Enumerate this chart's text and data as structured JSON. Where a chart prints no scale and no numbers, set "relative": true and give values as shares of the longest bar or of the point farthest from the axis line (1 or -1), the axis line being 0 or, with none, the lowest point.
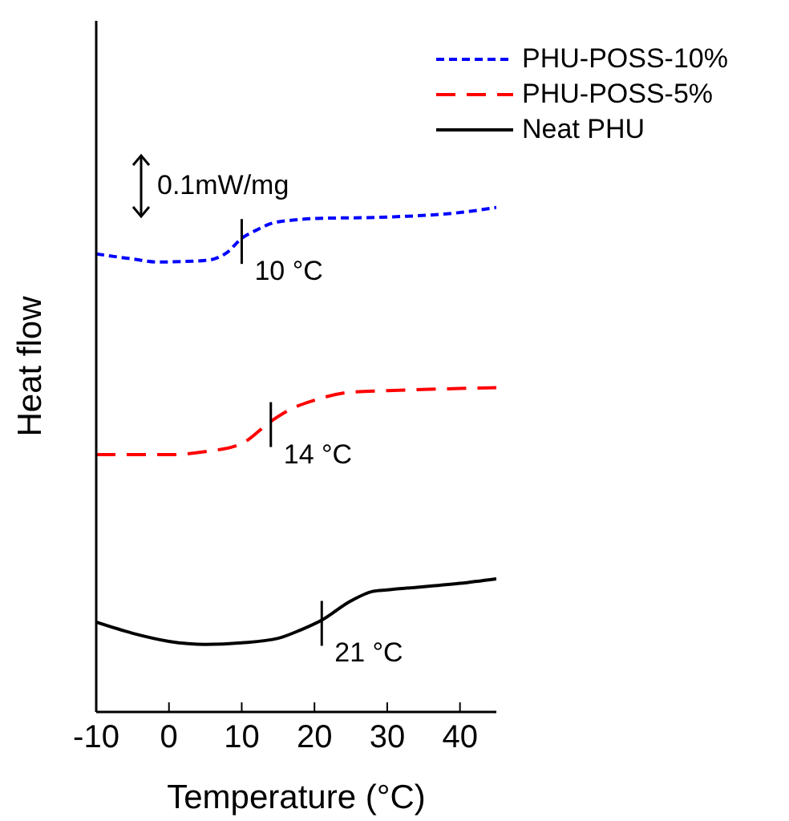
{
  "chart_data": {
    "type": "line",
    "xlabel": "Temperature (°C)",
    "ylabel": "Heat flow",
    "relative": true,
    "xlim": [
      -10,
      45
    ],
    "xticks": [
      -10,
      0,
      10,
      20,
      30,
      40
    ],
    "legend": "top right",
    "series": [
      {
        "name": "PHU-POSS-10%",
        "color": "#0000ff",
        "line_style": "dotted",
        "x": [
          -10,
          -5,
          -1.5,
          5,
          8,
          10,
          12,
          14,
          17,
          20,
          30,
          40,
          45
        ],
        "values": [
          0.908,
          0.898,
          0.892,
          0.895,
          0.911,
          0.939,
          0.955,
          0.968,
          0.975,
          0.978,
          0.981,
          0.99,
          1
        ]
      },
      {
        "name": "PHU-POSS-5%",
        "color": "#ff0000",
        "line_style": "dashed",
        "x": [
          -10,
          0,
          5,
          10,
          14,
          17,
          20,
          25,
          30,
          45
        ],
        "values": [
          0.51,
          0.51,
          0.516,
          0.532,
          0.576,
          0.602,
          0.618,
          0.634,
          0.637,
          0.643
        ]
      },
      {
        "name": "Neat PHU",
        "color": "#000000",
        "line_style": "solid",
        "x": [
          -10,
          -5,
          0,
          5,
          10,
          15,
          18,
          21,
          25,
          28,
          30,
          40,
          45
        ],
        "values": [
          0.178,
          0.156,
          0.14,
          0.134,
          0.137,
          0.146,
          0.162,
          0.182,
          0.22,
          0.239,
          0.242,
          0.255,
          0.264
        ]
      }
    ],
    "annotations": [
      "0.1mW/mg",
      {
        "text": "10 °C",
        "x": 10,
        "y": 0.939
      },
      {
        "text": "14 °C",
        "x": 14,
        "y": 0.576
      },
      {
        "text": "21 °C",
        "x": 21,
        "y": 0.182
      }
    ]
  }
}
